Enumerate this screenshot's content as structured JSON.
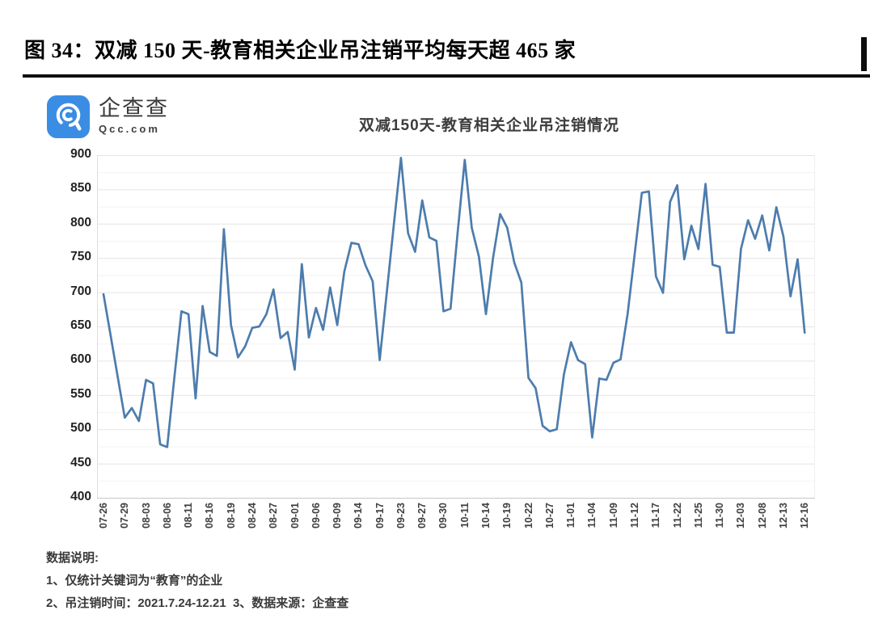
{
  "header": {
    "figure_title": "图 34：双减 150 天-教育相关企业吊注销平均每天超 465 家"
  },
  "logo": {
    "name": "企查查",
    "domain": "Qcc.com",
    "brand_color": "#3b8de4"
  },
  "chart_data": {
    "type": "line",
    "title": "双减150天-教育相关企业吊注销情况",
    "legend": "none",
    "grid": "horizontal major+minor",
    "line_color": "#4d7cad",
    "ylim": [
      400,
      900
    ],
    "y_ticks": [
      900,
      850,
      800,
      750,
      700,
      650,
      600,
      550,
      500,
      450,
      400
    ],
    "x_tick_labels": [
      "07-26",
      "07-29",
      "08-03",
      "08-06",
      "08-11",
      "08-16",
      "08-19",
      "08-24",
      "08-27",
      "09-01",
      "09-06",
      "09-09",
      "09-14",
      "09-17",
      "09-23",
      "09-27",
      "09-30",
      "10-11",
      "10-14",
      "10-19",
      "10-22",
      "10-27",
      "11-01",
      "11-04",
      "11-09",
      "11-12",
      "11-17",
      "11-22",
      "11-25",
      "11-30",
      "12-03",
      "12-08",
      "12-13",
      "12-16"
    ],
    "points_per_tick": 3,
    "values": [
      697,
      637,
      577,
      517,
      531,
      512,
      572,
      567,
      478,
      474,
      575,
      672,
      668,
      545,
      680,
      613,
      607,
      792,
      652,
      605,
      621,
      648,
      650,
      668,
      704,
      633,
      642,
      587,
      741,
      634,
      677,
      645,
      707,
      652,
      730,
      772,
      770,
      739,
      716,
      601,
      700,
      800,
      896,
      786,
      759,
      834,
      780,
      775,
      672,
      676,
      787,
      893,
      794,
      752,
      668,
      750,
      814,
      794,
      743,
      714,
      575,
      560,
      505,
      497,
      500,
      580,
      627,
      601,
      595,
      488,
      574,
      572,
      597,
      602,
      668,
      756,
      845,
      847,
      723,
      699,
      832,
      856,
      748,
      797,
      763,
      858,
      740,
      737,
      641,
      641,
      763,
      805,
      778,
      812,
      761,
      824,
      781,
      694,
      748,
      641
    ]
  },
  "notes": {
    "heading": "数据说明:",
    "line1": "1、仅统计关键词为“教育”的企业",
    "line2": "2、吊注销时间：2021.7.24-12.21  3、数据来源：企查查"
  }
}
